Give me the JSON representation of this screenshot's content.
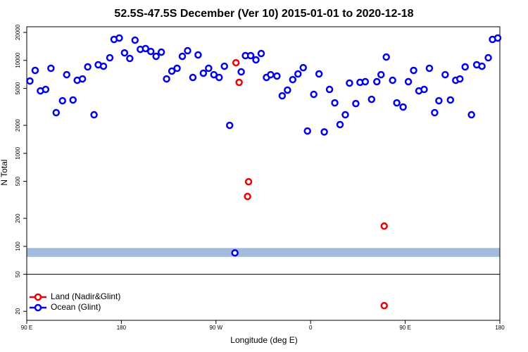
{
  "chart_data": {
    "type": "scatter",
    "title": "52.5S-47.5S December (Ver 10)   2015-01-01 to 2020-12-18",
    "x_label": "Longitude (deg E)",
    "y_label": "N Total",
    "y_scale": "log",
    "legend": "bottom-left",
    "xlim": [
      90,
      540
    ],
    "xticks": [
      {
        "value": 90,
        "label": "90 E"
      },
      180,
      {
        "value": 270,
        "label": "90 W"
      },
      {
        "value": 360,
        "label": "0"
      },
      {
        "value": 450,
        "label": "90 E"
      },
      {
        "value": 540,
        "label": "180"
      }
    ],
    "ylim": [
      16,
      23000
    ],
    "yticks": [
      20,
      50,
      100,
      200,
      500,
      1000,
      2000,
      5000,
      10000,
      20000
    ],
    "hline": 50,
    "shaded_band": [
      77,
      96
    ],
    "series": [
      {
        "name": "Land (Nadir&Glint)",
        "color": "#ee0000",
        "x": [
          289,
          292,
          301,
          300,
          430,
          430
        ],
        "values": [
          9440,
          5800,
          495,
          344,
          165,
          23
        ]
      },
      {
        "name": "Ocean (Glint)",
        "color": "#0000ee",
        "x": [
          93,
          98,
          103,
          108,
          113,
          118,
          124,
          128,
          134,
          138,
          143,
          148,
          154,
          158,
          163,
          169,
          173,
          178,
          183,
          188,
          193,
          198,
          203,
          208,
          213,
          218,
          223,
          228,
          233,
          238,
          243,
          248,
          253,
          258,
          263,
          268,
          273,
          278,
          283,
          288,
          294,
          298,
          303,
          308,
          313,
          318,
          322,
          328,
          333,
          338,
          343,
          348,
          353,
          357,
          363,
          368,
          373,
          378,
          383,
          388,
          393,
          397,
          403,
          407,
          412,
          418,
          423,
          427,
          432,
          438,
          442,
          448,
          453,
          458,
          463,
          468,
          473,
          478,
          482,
          488,
          493,
          498,
          502,
          507,
          513,
          518,
          523,
          529,
          533,
          538
        ],
        "values": [
          6000,
          7800,
          4700,
          4870,
          8220,
          2740,
          3680,
          7020,
          3750,
          6110,
          6320,
          8510,
          2600,
          8970,
          8650,
          10670,
          16800,
          17400,
          12050,
          10490,
          16500,
          13150,
          13400,
          12480,
          11050,
          12270,
          6320,
          7660,
          8220,
          11050,
          12700,
          6550,
          11450,
          7280,
          8220,
          7020,
          6550,
          8650,
          2000,
          85,
          7530,
          11250,
          11250,
          10130,
          11850,
          6550,
          7020,
          6780,
          4160,
          4790,
          6210,
          7150,
          8350,
          1740,
          4310,
          7150,
          1700,
          4870,
          3490,
          2040,
          2600,
          5700,
          3430,
          5800,
          5900,
          3810,
          5900,
          7020,
          10860,
          6110,
          3490,
          3150,
          5900,
          7800,
          4700,
          4870,
          8220,
          2740,
          3680,
          7020,
          3750,
          6110,
          6320,
          8510,
          2600,
          8970,
          8650,
          10670,
          16800,
          17400
        ]
      }
    ]
  }
}
